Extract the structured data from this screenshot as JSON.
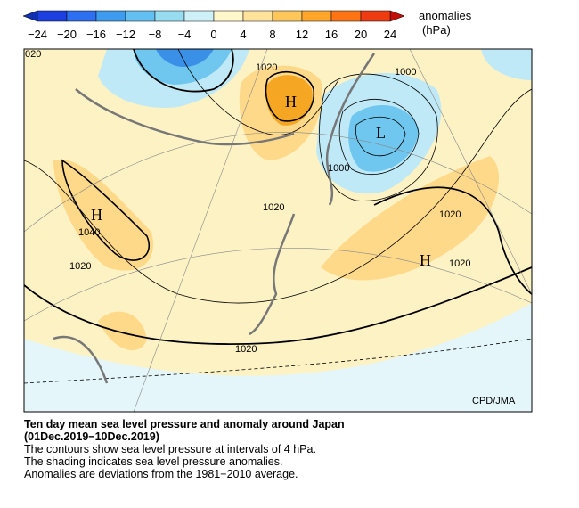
{
  "colorbar": {
    "title": "anomalies",
    "unit": "(hPa)",
    "ticks": [
      "−24",
      "−20",
      "−16",
      "−12",
      "−8",
      "−4",
      "0",
      "4",
      "8",
      "12",
      "16",
      "20",
      "24"
    ]
  },
  "map": {
    "labels": [
      "020",
      "1020",
      "H",
      "1000",
      "L",
      "1000",
      "1020",
      "1020",
      "H",
      "1040",
      "1020",
      "H",
      "1020",
      "1020"
    ],
    "credit": "CPD/JMA"
  },
  "caption": {
    "title": "Ten day mean sea level pressure and anomaly around Japan",
    "period": "(01Dec.2019−10Dec.2019)",
    "lines": [
      "The contours show sea level pressure at intervals of 4 hPa.",
      "The shading indicates sea level pressure anomalies.",
      "Anomalies are deviations from the 1981−2010 average."
    ]
  }
}
